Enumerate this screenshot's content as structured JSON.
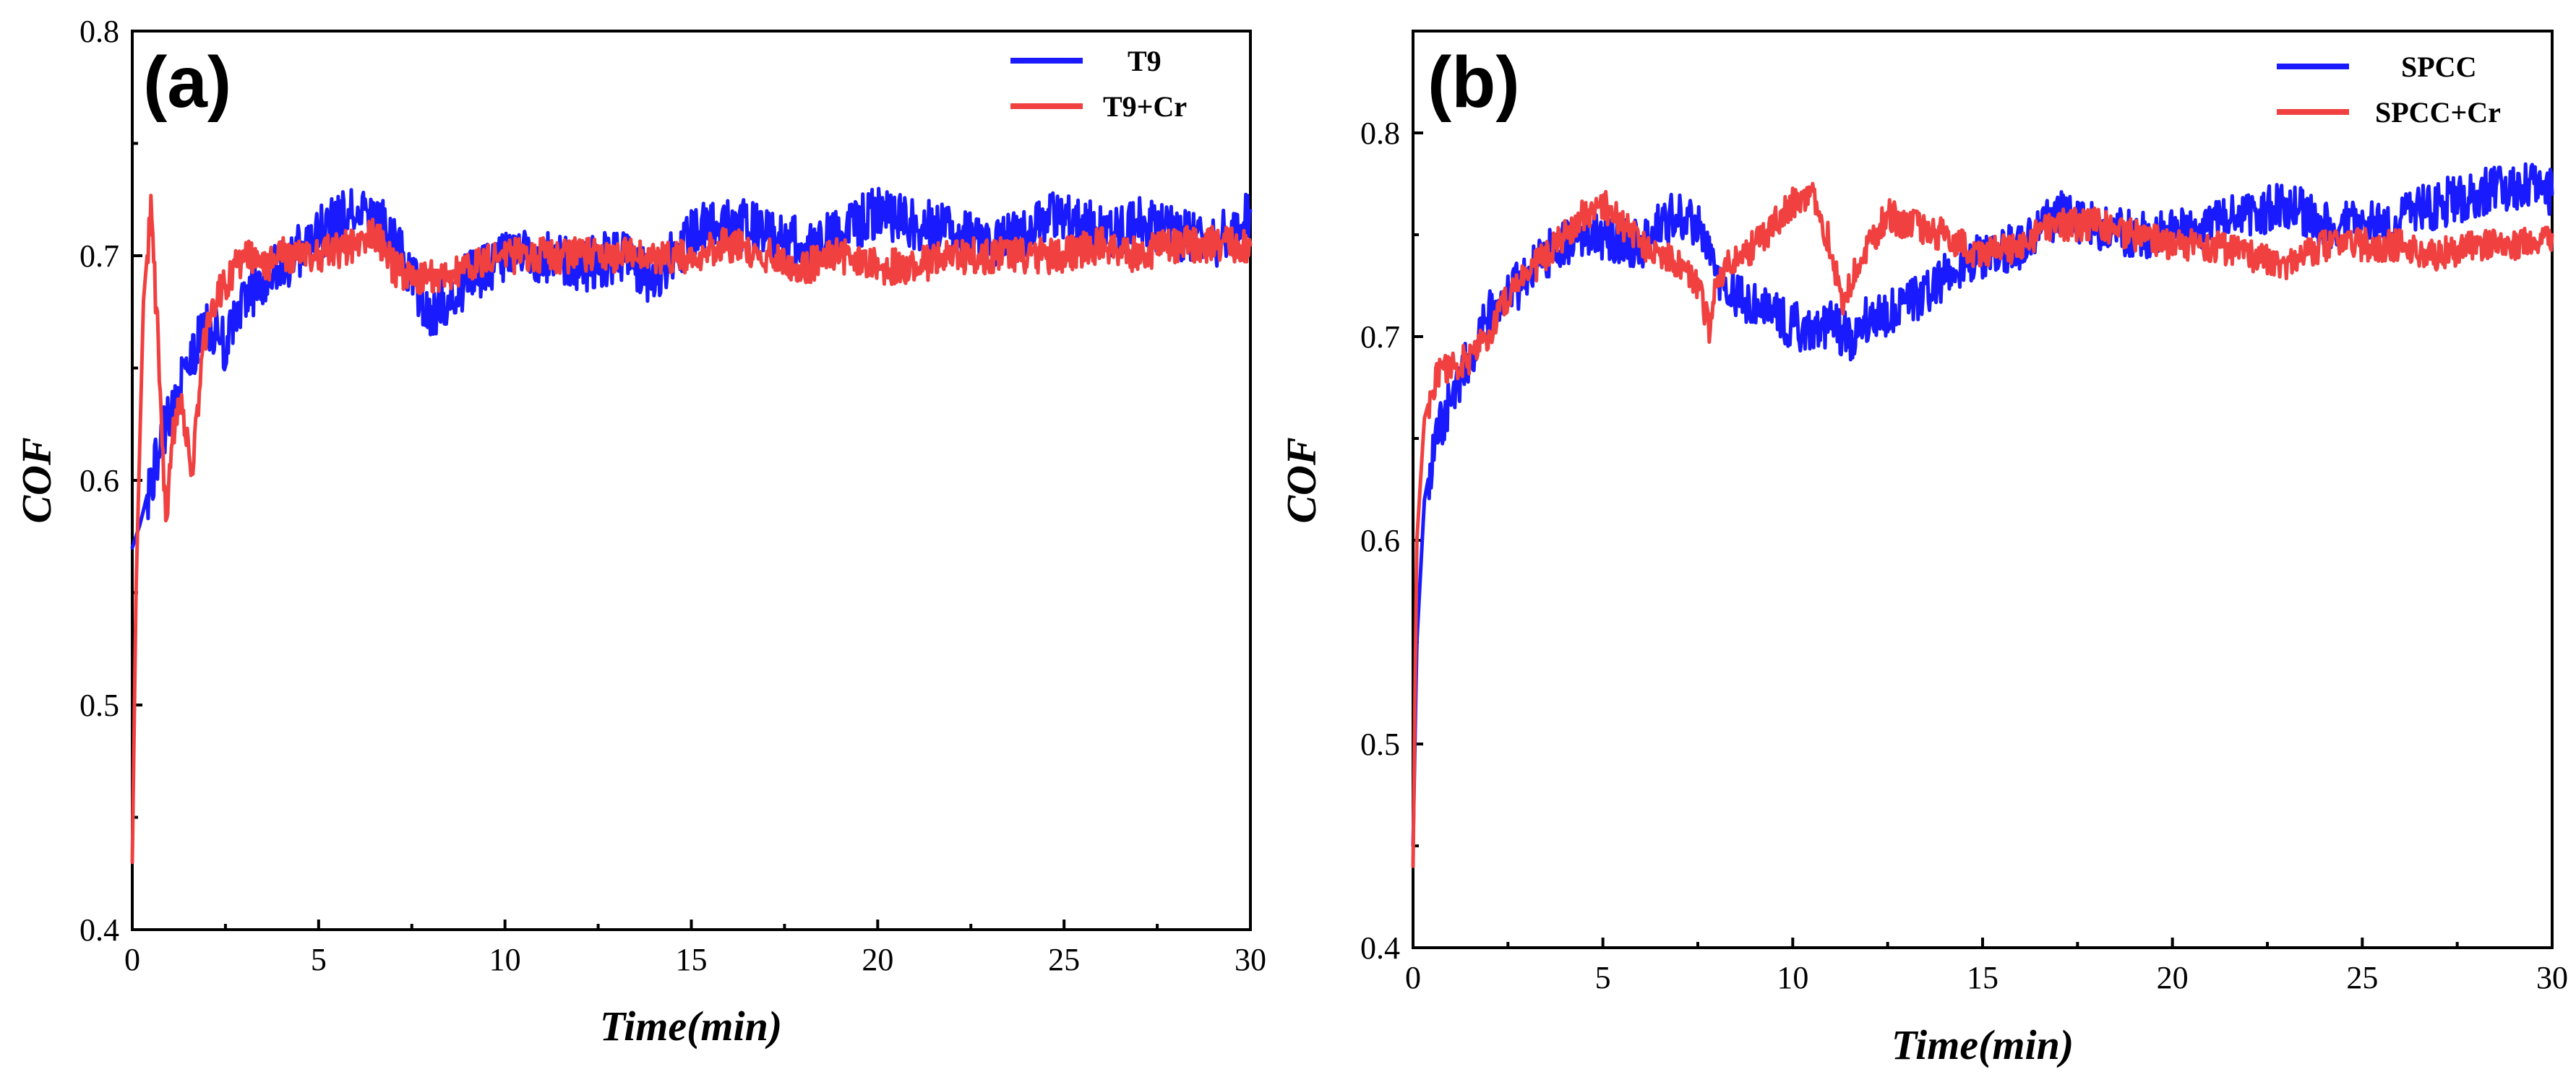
{
  "chart_data": [
    {
      "type": "line",
      "panel_label": "(a)",
      "xlabel": "Time(min)",
      "ylabel": "COF",
      "xlim": [
        0,
        30
      ],
      "ylim": [
        0.4,
        0.8
      ],
      "x_ticks": [
        0,
        5,
        10,
        15,
        20,
        25,
        30
      ],
      "y_ticks": [
        0.4,
        0.5,
        0.6,
        0.7,
        0.8
      ],
      "x_tick_labels": [
        "0",
        "5",
        "10",
        "15",
        "20",
        "25",
        "30"
      ],
      "y_tick_labels": [
        "0.4",
        "0.5",
        "0.6",
        "0.7",
        "0.8"
      ],
      "legend_position": "top-right",
      "series": [
        {
          "name": "T9",
          "color": "#1a1aff",
          "x": [
            0,
            0.2,
            0.5,
            1,
            1.5,
            2,
            2.5,
            3,
            3.5,
            4,
            5,
            6,
            7,
            7.5,
            8,
            8.5,
            9,
            10,
            11,
            12,
            13,
            14,
            15,
            16,
            17,
            18,
            19,
            20,
            21,
            22,
            23,
            24,
            25,
            26,
            27,
            28,
            29,
            30
          ],
          "y": [
            0.57,
            0.58,
            0.6,
            0.63,
            0.65,
            0.67,
            0.66,
            0.68,
            0.69,
            0.695,
            0.71,
            0.72,
            0.71,
            0.69,
            0.675,
            0.68,
            0.69,
            0.7,
            0.7,
            0.695,
            0.7,
            0.69,
            0.71,
            0.715,
            0.71,
            0.705,
            0.71,
            0.72,
            0.715,
            0.71,
            0.705,
            0.71,
            0.72,
            0.71,
            0.715,
            0.71,
            0.705,
            0.72
          ]
        },
        {
          "name": "T9+Cr",
          "color": "#f04040",
          "x": [
            0,
            0.1,
            0.3,
            0.5,
            0.7,
            0.9,
            1.1,
            1.3,
            1.6,
            1.9,
            2.2,
            2.6,
            3,
            3.5,
            4,
            5,
            6,
            6.5,
            7,
            7.5,
            8,
            9,
            10,
            11,
            12,
            13,
            14,
            15,
            16,
            17,
            18,
            19,
            20,
            21,
            22,
            23,
            24,
            25,
            26,
            27,
            28,
            29,
            30
          ],
          "y": [
            0.43,
            0.55,
            0.68,
            0.72,
            0.66,
            0.58,
            0.62,
            0.64,
            0.6,
            0.66,
            0.68,
            0.69,
            0.7,
            0.695,
            0.7,
            0.7,
            0.705,
            0.71,
            0.695,
            0.69,
            0.69,
            0.695,
            0.7,
            0.7,
            0.7,
            0.7,
            0.7,
            0.7,
            0.705,
            0.7,
            0.695,
            0.7,
            0.695,
            0.695,
            0.7,
            0.7,
            0.7,
            0.7,
            0.705,
            0.7,
            0.705,
            0.705,
            0.705
          ]
        }
      ]
    },
    {
      "type": "line",
      "panel_label": "(b)",
      "xlabel": "Time(min)",
      "ylabel": "COF",
      "xlim": [
        0,
        30
      ],
      "ylim": [
        0.4,
        0.85
      ],
      "x_ticks": [
        0,
        5,
        10,
        15,
        20,
        25,
        30
      ],
      "y_ticks": [
        0.4,
        0.5,
        0.6,
        0.7,
        0.8
      ],
      "x_tick_labels": [
        "0",
        "5",
        "10",
        "15",
        "20",
        "25",
        "30"
      ],
      "y_tick_labels": [
        "0.4",
        "0.5",
        "0.6",
        "0.7",
        "0.8"
      ],
      "legend_position": "top-right",
      "series": [
        {
          "name": "SPCC",
          "color": "#1a1aff",
          "x": [
            0,
            0.1,
            0.3,
            0.6,
            1,
            1.5,
            2,
            2.5,
            3,
            3.5,
            4,
            5,
            6,
            6.5,
            7,
            7.5,
            8,
            8.5,
            9,
            10,
            11,
            11.5,
            12,
            13,
            14,
            15,
            16,
            17,
            18,
            19,
            20,
            21,
            22,
            23,
            24,
            25,
            26,
            27,
            28,
            29,
            30
          ],
          "y": [
            0.45,
            0.55,
            0.62,
            0.65,
            0.67,
            0.69,
            0.71,
            0.72,
            0.73,
            0.74,
            0.745,
            0.75,
            0.745,
            0.755,
            0.76,
            0.755,
            0.73,
            0.72,
            0.715,
            0.705,
            0.705,
            0.7,
            0.71,
            0.715,
            0.73,
            0.74,
            0.745,
            0.76,
            0.755,
            0.75,
            0.75,
            0.755,
            0.76,
            0.765,
            0.755,
            0.755,
            0.76,
            0.765,
            0.77,
            0.775,
            0.77
          ]
        },
        {
          "name": "SPCC+Cr",
          "color": "#f04040",
          "x": [
            0,
            0.1,
            0.3,
            0.6,
            1,
            1.5,
            2,
            2.5,
            3,
            3.5,
            4,
            4.5,
            5,
            5.5,
            6,
            7,
            7.5,
            7.8,
            8,
            9,
            10,
            10.5,
            11,
            11.3,
            11.6,
            12,
            12.5,
            13,
            14,
            15,
            16,
            17,
            18,
            19,
            20,
            21,
            22,
            23,
            24,
            25,
            26,
            27,
            28,
            29,
            30
          ],
          "y": [
            0.44,
            0.6,
            0.66,
            0.68,
            0.685,
            0.69,
            0.7,
            0.72,
            0.73,
            0.74,
            0.75,
            0.76,
            0.765,
            0.755,
            0.745,
            0.735,
            0.725,
            0.705,
            0.73,
            0.745,
            0.765,
            0.77,
            0.745,
            0.715,
            0.73,
            0.745,
            0.76,
            0.755,
            0.75,
            0.74,
            0.745,
            0.755,
            0.755,
            0.75,
            0.745,
            0.745,
            0.74,
            0.735,
            0.745,
            0.745,
            0.745,
            0.74,
            0.745,
            0.745,
            0.75
          ]
        }
      ]
    }
  ]
}
